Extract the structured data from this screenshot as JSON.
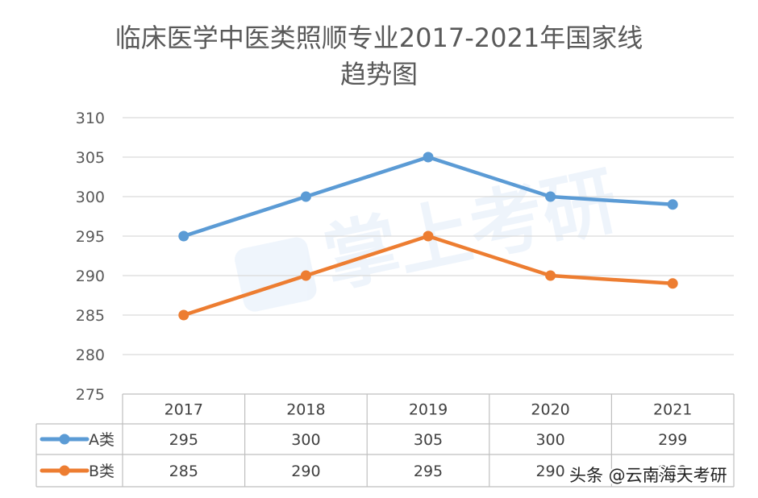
{
  "chart_data": {
    "type": "line",
    "title": "临床医学中医类照顺专业2017-2021年国家线趋势图",
    "title_lines": [
      "临床医学中医类照顺专业2017-2021年国家线",
      "趋势图"
    ],
    "categories": [
      "2017",
      "2018",
      "2019",
      "2020",
      "2021"
    ],
    "series": [
      {
        "name": "A类",
        "values": [
          295,
          300,
          305,
          300,
          299
        ],
        "color": "#5b9bd5"
      },
      {
        "name": "B类",
        "values": [
          285,
          290,
          295,
          290,
          289
        ],
        "color": "#ed7d31"
      }
    ],
    "y_ticks": [
      "275",
      "280",
      "285",
      "290",
      "295",
      "300",
      "305",
      "310"
    ],
    "ylim": [
      275,
      310
    ],
    "grid": true,
    "legend_placement": "data-table-left",
    "data_table": true,
    "watermark_text": "掌上考研",
    "footer_text": "头条 @云南海天考研"
  }
}
